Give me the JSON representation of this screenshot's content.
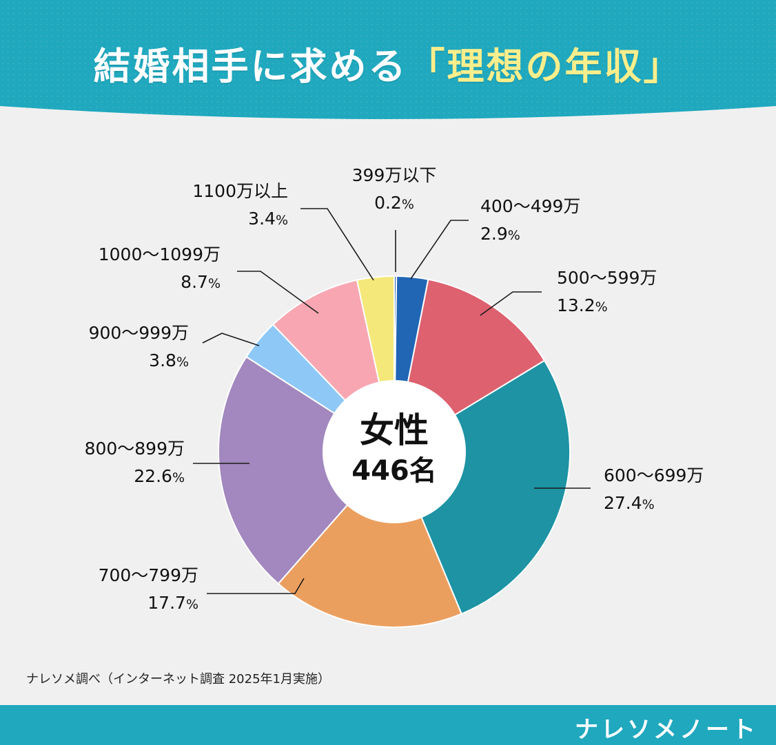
{
  "header": {
    "title_prefix": "結婚相手に求める",
    "title_highlight": "「理想の年収」"
  },
  "chart_data": {
    "type": "pie",
    "title": "結婚相手に求める「理想の年収」",
    "center_label": "女性",
    "center_count": "446名",
    "unit": "%",
    "categories": [
      "399万以下",
      "400〜499万",
      "500〜599万",
      "600〜699万",
      "700〜799万",
      "800〜899万",
      "900〜999万",
      "1000〜1099万",
      "1100万以上"
    ],
    "values": [
      0.2,
      2.9,
      13.2,
      27.4,
      17.7,
      22.6,
      3.8,
      8.7,
      3.4
    ],
    "value_labels": [
      "0.2",
      "2.9",
      "13.2",
      "27.4",
      "17.7",
      "22.6",
      "3.8",
      "8.7",
      "3.4"
    ],
    "colors": [
      "#2166b5",
      "#2166b5",
      "#de6170",
      "#1d93a4",
      "#eb9f5f",
      "#a288be",
      "#8ec8f7",
      "#f8a7b2",
      "#f5e87a"
    ]
  },
  "footer": {
    "note": "ナレソメ調べ（インターネット調査 2025年1月実施）",
    "brand": "ナレソメノート"
  }
}
